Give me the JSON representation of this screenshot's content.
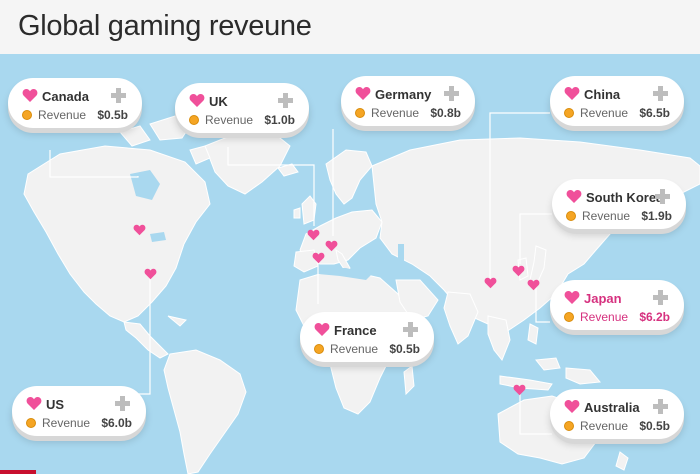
{
  "title": "Global gaming reveune",
  "colors": {
    "heart": "#f0509a",
    "highlight": "#d6317f",
    "ocean": "#a9d8ef",
    "land": "#f2f2f2",
    "coin": "#f5a524"
  },
  "icons": {
    "marker": "heart-icon",
    "expand": "plus-icon",
    "revenue": "coin-icon"
  },
  "cards": [
    {
      "country": "Canada",
      "label": "Revenue",
      "value": "$0.5b"
    },
    {
      "country": "UK",
      "label": "Revenue",
      "value": "$1.0b"
    },
    {
      "country": "Germany",
      "label": "Revenue",
      "value": "$0.8b"
    },
    {
      "country": "China",
      "label": "Revenue",
      "value": "$6.5b"
    },
    {
      "country": "South Korea",
      "label": "Revenue",
      "value": "$1.9b"
    },
    {
      "country": "Japan",
      "label": "Revenue",
      "value": "$6.2b",
      "highlighted": true
    },
    {
      "country": "France",
      "label": "Revenue",
      "value": "$0.5b"
    },
    {
      "country": "US",
      "label": "Revenue",
      "value": "$6.0b"
    },
    {
      "country": "Australia",
      "label": "Revenue",
      "value": "$0.5b"
    }
  ]
}
